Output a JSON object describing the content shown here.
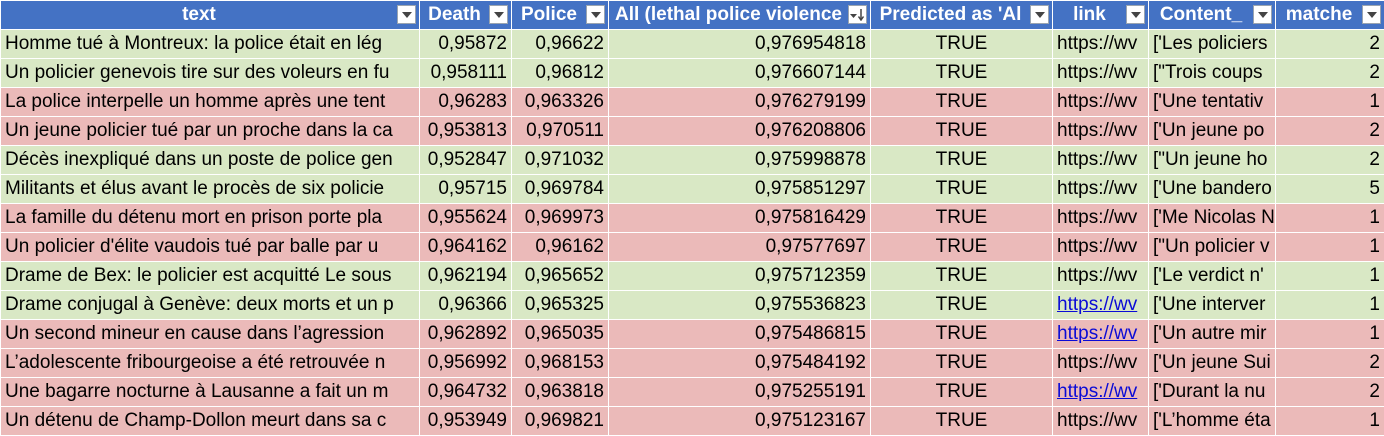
{
  "colors": {
    "header_bg": "#4472c4",
    "row_green": "#d9e8c5",
    "row_red": "#ebbab9",
    "hyperlink": "#0b0bd6"
  },
  "headers": [
    {
      "label": "text"
    },
    {
      "label": "Death"
    },
    {
      "label": "Police"
    },
    {
      "label": "All (lethal police violence"
    },
    {
      "label": "Predicted as 'Al"
    },
    {
      "label": "link"
    },
    {
      "label": "Content_"
    },
    {
      "label": "matche"
    }
  ],
  "rows": [
    {
      "fill": "green",
      "text": "Homme tué à Montreux: la police était en lég",
      "death": "0,95872",
      "police": "0,96622",
      "all": "0,976954818",
      "pred": "TRUE",
      "link": "https://wv",
      "link_style": "plain",
      "content": "['Les policiers",
      "matches": "2"
    },
    {
      "fill": "green",
      "text": "Un policier genevois tire sur des voleurs en fu",
      "death": "0,958111",
      "police": "0,96812",
      "all": "0,976607144",
      "pred": "TRUE",
      "link": "https://wv",
      "link_style": "plain",
      "content": "[\"Trois coups",
      "matches": "2"
    },
    {
      "fill": "red",
      "text": "La police interpelle un homme après une tent",
      "death": "0,96283",
      "police": "0,963326",
      "all": "0,976279199",
      "pred": "TRUE",
      "link": "https://wv",
      "link_style": "plain",
      "content": "['Une tentativ",
      "matches": "1"
    },
    {
      "fill": "red",
      "text": "Un jeune policier tué par un proche dans la ca",
      "death": "0,953813",
      "police": "0,970511",
      "all": "0,976208806",
      "pred": "TRUE",
      "link": "https://wv",
      "link_style": "plain",
      "content": "['Un jeune po",
      "matches": "2"
    },
    {
      "fill": "green",
      "text": "Décès inexpliqué dans un poste de police gen",
      "death": "0,952847",
      "police": "0,971032",
      "all": "0,975998878",
      "pred": "TRUE",
      "link": "https://wv",
      "link_style": "plain",
      "content": "[\"Un jeune ho",
      "matches": "2"
    },
    {
      "fill": "green",
      "text": "Militants et élus avant le procès de six policie",
      "death": "0,95715",
      "police": "0,969784",
      "all": "0,975851297",
      "pred": "TRUE",
      "link": "https://wv",
      "link_style": "plain",
      "content": "['Une bandero",
      "matches": "5"
    },
    {
      "fill": "red",
      "text": "La famille du détenu mort en prison porte pla",
      "death": "0,955624",
      "police": "0,969973",
      "all": "0,975816429",
      "pred": "TRUE",
      "link": "https://wv",
      "link_style": "plain",
      "content": "['Me Nicolas N",
      "matches": "1"
    },
    {
      "fill": "red",
      "text": "Un policier d'élite vaudois tué par balle par u",
      "death": "0,964162",
      "police": "0,96162",
      "all": "0,97577697",
      "pred": "TRUE",
      "link": "https://wv",
      "link_style": "plain",
      "content": "[\"Un policier v",
      "matches": "1"
    },
    {
      "fill": "green",
      "text": "Drame de Bex: le policier est acquitté Le sous",
      "death": "0,962194",
      "police": "0,965652",
      "all": "0,975712359",
      "pred": "TRUE",
      "link": "https://wv",
      "link_style": "plain",
      "content": "['Le verdict n'",
      "matches": "1"
    },
    {
      "fill": "green",
      "text": "Drame conjugal à Genève: deux morts et un p",
      "death": "0,96366",
      "police": "0,965325",
      "all": "0,975536823",
      "pred": "TRUE",
      "link": "https://wv",
      "link_style": "hyperlink",
      "content": "['Une interver",
      "matches": "1"
    },
    {
      "fill": "red",
      "text": "Un second mineur en cause dans l’agression",
      "death": "0,962892",
      "police": "0,965035",
      "all": "0,975486815",
      "pred": "TRUE",
      "link": "https://wv",
      "link_style": "hyperlink",
      "content": "['Un autre mir",
      "matches": "1"
    },
    {
      "fill": "red",
      "text": "L’adolescente fribourgeoise a été retrouvée n",
      "death": "0,956992",
      "police": "0,968153",
      "all": "0,975484192",
      "pred": "TRUE",
      "link": "https://wv",
      "link_style": "plain",
      "content": "['Un jeune Sui",
      "matches": "2"
    },
    {
      "fill": "red",
      "text": "Une bagarre nocturne à Lausanne a fait un m",
      "death": "0,964732",
      "police": "0,963818",
      "all": "0,975255191",
      "pred": "TRUE",
      "link": "https://wv",
      "link_style": "hyperlink",
      "content": "['Durant la nu",
      "matches": "2"
    },
    {
      "fill": "red",
      "text": "Un détenu de Champ-Dollon meurt dans sa c",
      "death": "0,953949",
      "police": "0,969821",
      "all": "0,975123167",
      "pred": "TRUE",
      "link": "https://wv",
      "link_style": "plain",
      "content": "['L’homme éta",
      "matches": "1"
    }
  ]
}
